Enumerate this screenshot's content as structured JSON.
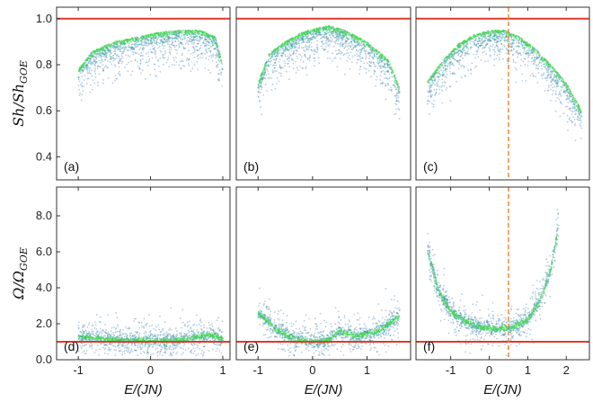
{
  "chart_data": {
    "type": "scatter",
    "colors": {
      "scatter_blue": "#2f6fa8",
      "scatter_teal": "#2aa39a",
      "scatter_green": "#3fe03f",
      "reference_line": "#e03a2a",
      "marker_line": "#f08a3c"
    },
    "xlabel": "E/(JN)",
    "rows": [
      {
        "ylabel_main": "Sh/Sh",
        "ylabel_sub": "GOE",
        "ylim": [
          0.3,
          1.05
        ],
        "yticks": [
          "1.0",
          "0.8",
          "0.6",
          "0.4"
        ],
        "reference_y": 1.0
      },
      {
        "ylabel_main": "Ω/Ω",
        "ylabel_sub": "GOE",
        "ylim": [
          0.0,
          9.6
        ],
        "yticks": [
          "8.0",
          "6.0",
          "4.0",
          "2.0",
          "0.0"
        ],
        "reference_y": 1.0
      }
    ],
    "columns": [
      {
        "xlim": [
          -1.3,
          1.1
        ],
        "xticks": [
          "-1",
          "0",
          "1"
        ],
        "dashed_x": null
      },
      {
        "xlim": [
          -1.4,
          1.8
        ],
        "xticks": [
          "-1",
          "0",
          "1"
        ],
        "dashed_x": null
      },
      {
        "xlim": [
          -1.9,
          2.6
        ],
        "xticks": [
          "-1",
          "0",
          "1",
          "2"
        ],
        "dashed_x": 0.5
      }
    ],
    "panels": [
      {
        "label": "(a)",
        "row": 0,
        "col": 0,
        "density_y": [
          [
            -1.0,
            0.78
          ],
          [
            -0.8,
            0.86
          ],
          [
            -0.5,
            0.9
          ],
          [
            -0.2,
            0.92
          ],
          [
            0.1,
            0.94
          ],
          [
            0.4,
            0.95
          ],
          [
            0.7,
            0.95
          ],
          [
            0.9,
            0.92
          ],
          [
            1.0,
            0.8
          ]
        ]
      },
      {
        "label": "(b)",
        "row": 0,
        "col": 1,
        "density_y": [
          [
            -1.0,
            0.72
          ],
          [
            -0.8,
            0.85
          ],
          [
            -0.5,
            0.9
          ],
          [
            -0.2,
            0.94
          ],
          [
            0.1,
            0.96
          ],
          [
            0.3,
            0.97
          ],
          [
            0.6,
            0.95
          ],
          [
            1.0,
            0.9
          ],
          [
            1.4,
            0.82
          ],
          [
            1.6,
            0.7
          ]
        ]
      },
      {
        "label": "(c)",
        "row": 0,
        "col": 2,
        "density_y": [
          [
            -1.6,
            0.73
          ],
          [
            -1.2,
            0.82
          ],
          [
            -0.8,
            0.89
          ],
          [
            -0.4,
            0.93
          ],
          [
            0.0,
            0.95
          ],
          [
            0.4,
            0.95
          ],
          [
            0.8,
            0.92
          ],
          [
            1.2,
            0.87
          ],
          [
            1.6,
            0.8
          ],
          [
            2.0,
            0.72
          ],
          [
            2.4,
            0.6
          ]
        ]
      },
      {
        "label": "(d)",
        "row": 1,
        "col": 0,
        "density_y": [
          [
            -1.0,
            1.3
          ],
          [
            -0.7,
            1.2
          ],
          [
            -0.4,
            1.1
          ],
          [
            0.0,
            1.05
          ],
          [
            0.3,
            1.05
          ],
          [
            0.6,
            1.2
          ],
          [
            0.8,
            1.4
          ],
          [
            1.0,
            1.2
          ]
        ]
      },
      {
        "label": "(e)",
        "row": 1,
        "col": 1,
        "density_y": [
          [
            -1.0,
            2.6
          ],
          [
            -0.7,
            1.8
          ],
          [
            -0.4,
            1.2
          ],
          [
            0.0,
            1.0
          ],
          [
            0.3,
            1.1
          ],
          [
            0.5,
            1.6
          ],
          [
            0.8,
            1.3
          ],
          [
            1.2,
            1.6
          ],
          [
            1.6,
            2.4
          ]
        ]
      },
      {
        "label": "(f)",
        "row": 1,
        "col": 2,
        "density_y": [
          [
            -1.6,
            6.0
          ],
          [
            -1.3,
            3.8
          ],
          [
            -1.0,
            2.7
          ],
          [
            -0.6,
            2.1
          ],
          [
            -0.2,
            1.8
          ],
          [
            0.2,
            1.7
          ],
          [
            0.6,
            1.8
          ],
          [
            1.0,
            2.2
          ],
          [
            1.3,
            3.2
          ],
          [
            1.6,
            5.0
          ],
          [
            1.8,
            7.5
          ]
        ]
      }
    ]
  }
}
